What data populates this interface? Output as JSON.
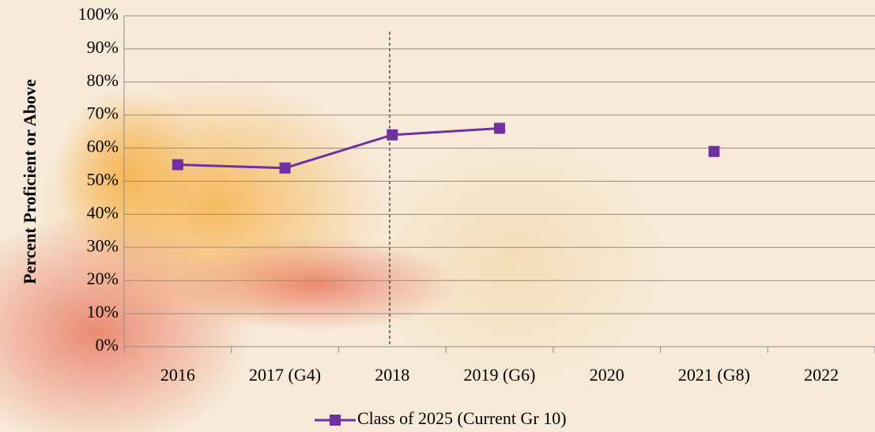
{
  "chart_data": {
    "type": "line",
    "y_axis_label": "Percent Proficient or Above",
    "categories": [
      "2016",
      "2017 (G4)",
      "2018",
      "2019 (G6)",
      "2020",
      "2021 (G8)",
      "2022"
    ],
    "series": [
      {
        "name": "Class of 2025 (Current Gr 10)",
        "color": "#7030a0",
        "values": [
          55,
          54,
          64,
          66,
          null,
          59,
          null
        ]
      }
    ],
    "ylim": [
      0,
      100
    ],
    "yticks": [
      {
        "value": 0,
        "label": "0%"
      },
      {
        "value": 10,
        "label": "10%"
      },
      {
        "value": 20,
        "label": "20%"
      },
      {
        "value": 30,
        "label": "30%"
      },
      {
        "value": 40,
        "label": "40%"
      },
      {
        "value": 50,
        "label": "50%"
      },
      {
        "value": 60,
        "label": "60%"
      },
      {
        "value": 70,
        "label": "70%"
      },
      {
        "value": 80,
        "label": "80%"
      },
      {
        "value": 90,
        "label": "90%"
      },
      {
        "value": 100,
        "label": "100%"
      }
    ],
    "grid": true,
    "legend": "bottom"
  }
}
